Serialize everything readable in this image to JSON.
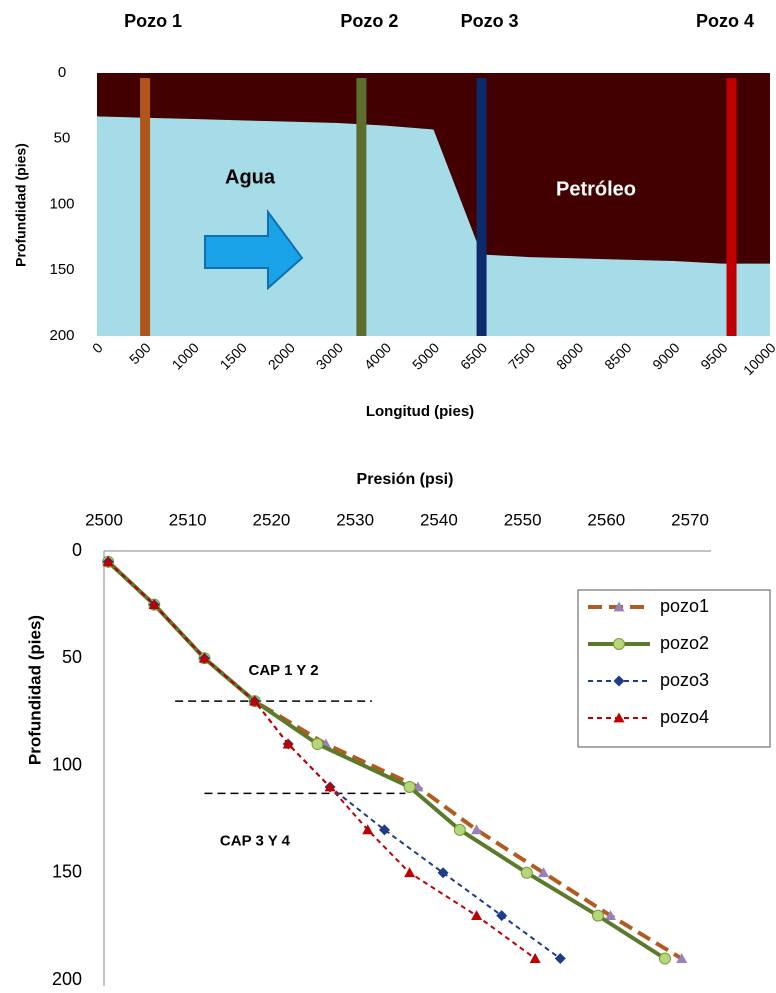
{
  "chart_data": [
    {
      "type": "area",
      "y_label": "Profundidad (pies)",
      "x_label": "Longitud (pies)",
      "categories": [
        0,
        500,
        1000,
        1500,
        2000,
        3000,
        4000,
        5000,
        6500,
        7500,
        8000,
        8500,
        9000,
        9500,
        10000
      ],
      "values": [
        33,
        34,
        35,
        36,
        37,
        38,
        40,
        43,
        138,
        140,
        141,
        142,
        143,
        145,
        145
      ],
      "water_color": "#a6dbe8",
      "oil_color": "#420000",
      "annotations": [
        "Agua",
        "Petróleo"
      ],
      "ylim": [
        0,
        200
      ],
      "y_inverted": true,
      "yticks": [
        0,
        50,
        100,
        150,
        200
      ],
      "wells": [
        {
          "name": "Pozo 1",
          "color": "#b0561c",
          "x": 500
        },
        {
          "name": "Pozo 2",
          "color": "#5b6e2c",
          "x": 3500
        },
        {
          "name": "Pozo 3",
          "color": "#0d2a6b",
          "x": 6500
        },
        {
          "name": "Pozo 4",
          "color": "#c00000",
          "x": 9600
        }
      ]
    },
    {
      "type": "line",
      "x_label": "Presión (psi)",
      "y_label": "Profundidad (pies)",
      "xlim": [
        2500,
        2572.5
      ],
      "xticks": [
        2500,
        2510,
        2520,
        2530,
        2540,
        2550,
        2560,
        2570
      ],
      "ylim": [
        0,
        200
      ],
      "y_inverted": true,
      "yticks": [
        0,
        50,
        100,
        150,
        200
      ],
      "legend": "upper right",
      "series": [
        {
          "name": "pozo1",
          "color": "#b35a1f",
          "marker": "triangle",
          "marker_color": "#9a80b8",
          "dash": "long",
          "width": 4,
          "x": [
            2500.5,
            2506,
            2512,
            2518,
            2526.5,
            2537.5,
            2544.5,
            2552.5,
            2560.5,
            2569
          ],
          "values": [
            5,
            25,
            50,
            70,
            90,
            110,
            130,
            150,
            170,
            190
          ]
        },
        {
          "name": "pozo2",
          "color": "#5b7a2b",
          "marker": "circle",
          "marker_color": "#b5d77a",
          "dash": "solid",
          "width": 4,
          "x": [
            2500.5,
            2506,
            2512,
            2518,
            2525.5,
            2536.5,
            2542.5,
            2550.5,
            2559,
            2567
          ],
          "values": [
            5,
            25,
            50,
            70,
            90,
            110,
            130,
            150,
            170,
            190
          ]
        },
        {
          "name": "pozo3",
          "color": "#1f3c88",
          "marker": "diamond",
          "marker_color": "#1f3c88",
          "dash": "short",
          "width": 2,
          "x": [
            2500.5,
            2506,
            2512,
            2518,
            2522,
            2527,
            2533.5,
            2540.5,
            2547.5,
            2554.5
          ],
          "values": [
            5,
            25,
            50,
            70,
            90,
            110,
            130,
            150,
            170,
            190
          ]
        },
        {
          "name": "pozo4",
          "color": "#c00000",
          "marker": "triangle",
          "marker_color": "#c00000",
          "dash": "short",
          "width": 2,
          "x": [
            2500.5,
            2506,
            2512,
            2518,
            2522,
            2527,
            2531.5,
            2536.5,
            2544.5,
            2551.5
          ],
          "values": [
            5,
            25,
            50,
            70,
            90,
            110,
            130,
            150,
            170,
            190
          ]
        }
      ],
      "reference_lines": [
        {
          "label": "CAP 1 Y 2",
          "y": 70,
          "x_range": [
            2508.5,
            2532
          ]
        },
        {
          "label": "CAP 3 Y 4",
          "y": 113,
          "x_range": [
            2512,
            2536
          ]
        }
      ]
    }
  ]
}
